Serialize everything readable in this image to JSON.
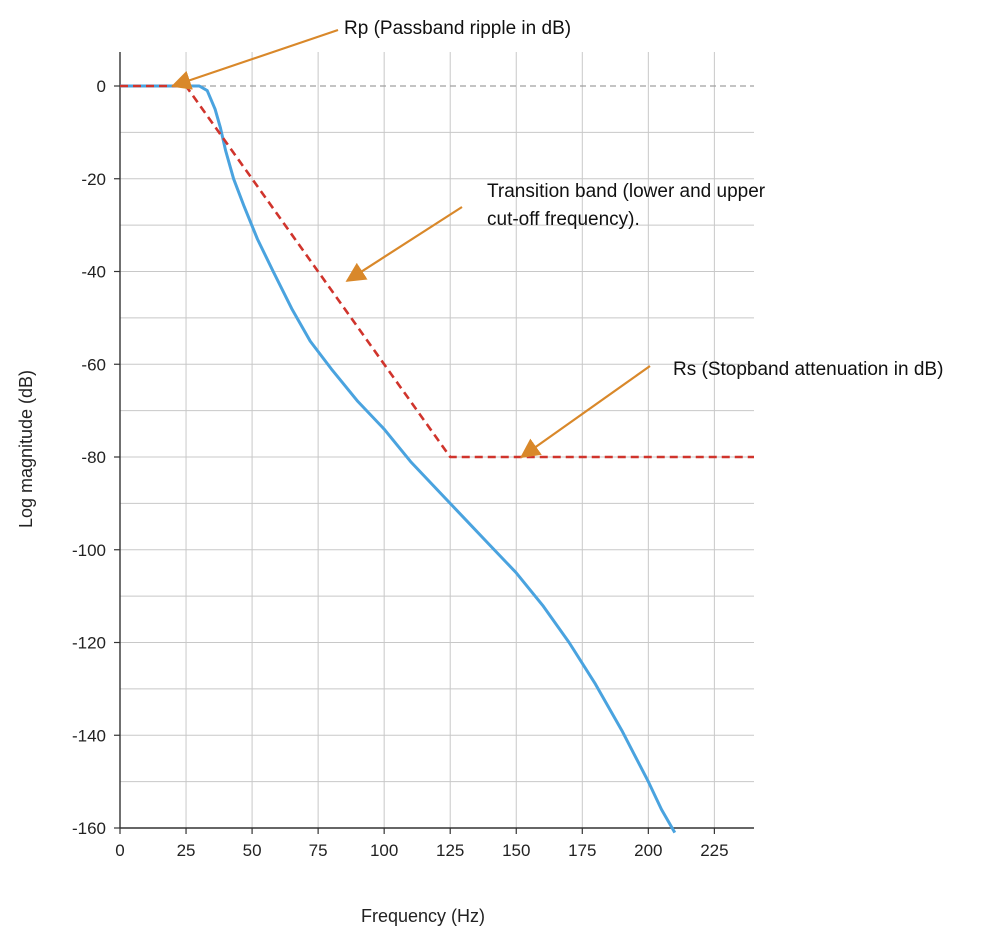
{
  "chart_data": {
    "type": "line",
    "title": "",
    "xlabel": "Frequency (Hz)",
    "ylabel": "Log magnitude (dB)",
    "xlim": [
      0,
      240
    ],
    "ylim": [
      -160,
      0
    ],
    "x_ticks": [
      0,
      25,
      50,
      75,
      100,
      125,
      150,
      175,
      200,
      225
    ],
    "y_ticks": [
      0,
      -20,
      -40,
      -60,
      -80,
      -100,
      -120,
      -140,
      -160
    ],
    "grid": true,
    "colors": {
      "filter_response": "#4aa3df",
      "specification": "#d0342c",
      "annotation_arrow": "#d9882a",
      "zero_line": "#a0a0a0"
    },
    "series": [
      {
        "style": "solid",
        "x": [
          0,
          20,
          26,
          30,
          33,
          36,
          38,
          40,
          43,
          47,
          52,
          58,
          65,
          72,
          80,
          90,
          100,
          110,
          120,
          130,
          140,
          150,
          160,
          170,
          180,
          190,
          200,
          205,
          210
        ],
        "y": [
          0,
          0,
          0,
          0,
          -1,
          -5,
          -9,
          -14,
          -20,
          -26,
          -33,
          -40,
          -48,
          -55,
          -61,
          -68,
          -74,
          -81,
          -87,
          -93,
          -99,
          -105,
          -112,
          -120,
          -129,
          -139,
          -150,
          -156,
          -161
        ]
      },
      {
        "style": "dashed",
        "x": [
          0,
          25,
          125,
          240
        ],
        "y": [
          0,
          0,
          -80,
          -80
        ]
      }
    ],
    "annotations": [
      {
        "text": "Rp (Passband ripple in dB)",
        "x": 20,
        "y": 0
      },
      {
        "lines": [
          "Transition band (lower and upper",
          "cut-off frequency)."
        ],
        "x": 86,
        "y": -42
      },
      {
        "text": "Rs (Stopband attenuation in dB)",
        "x": 152,
        "y": -80
      }
    ]
  }
}
